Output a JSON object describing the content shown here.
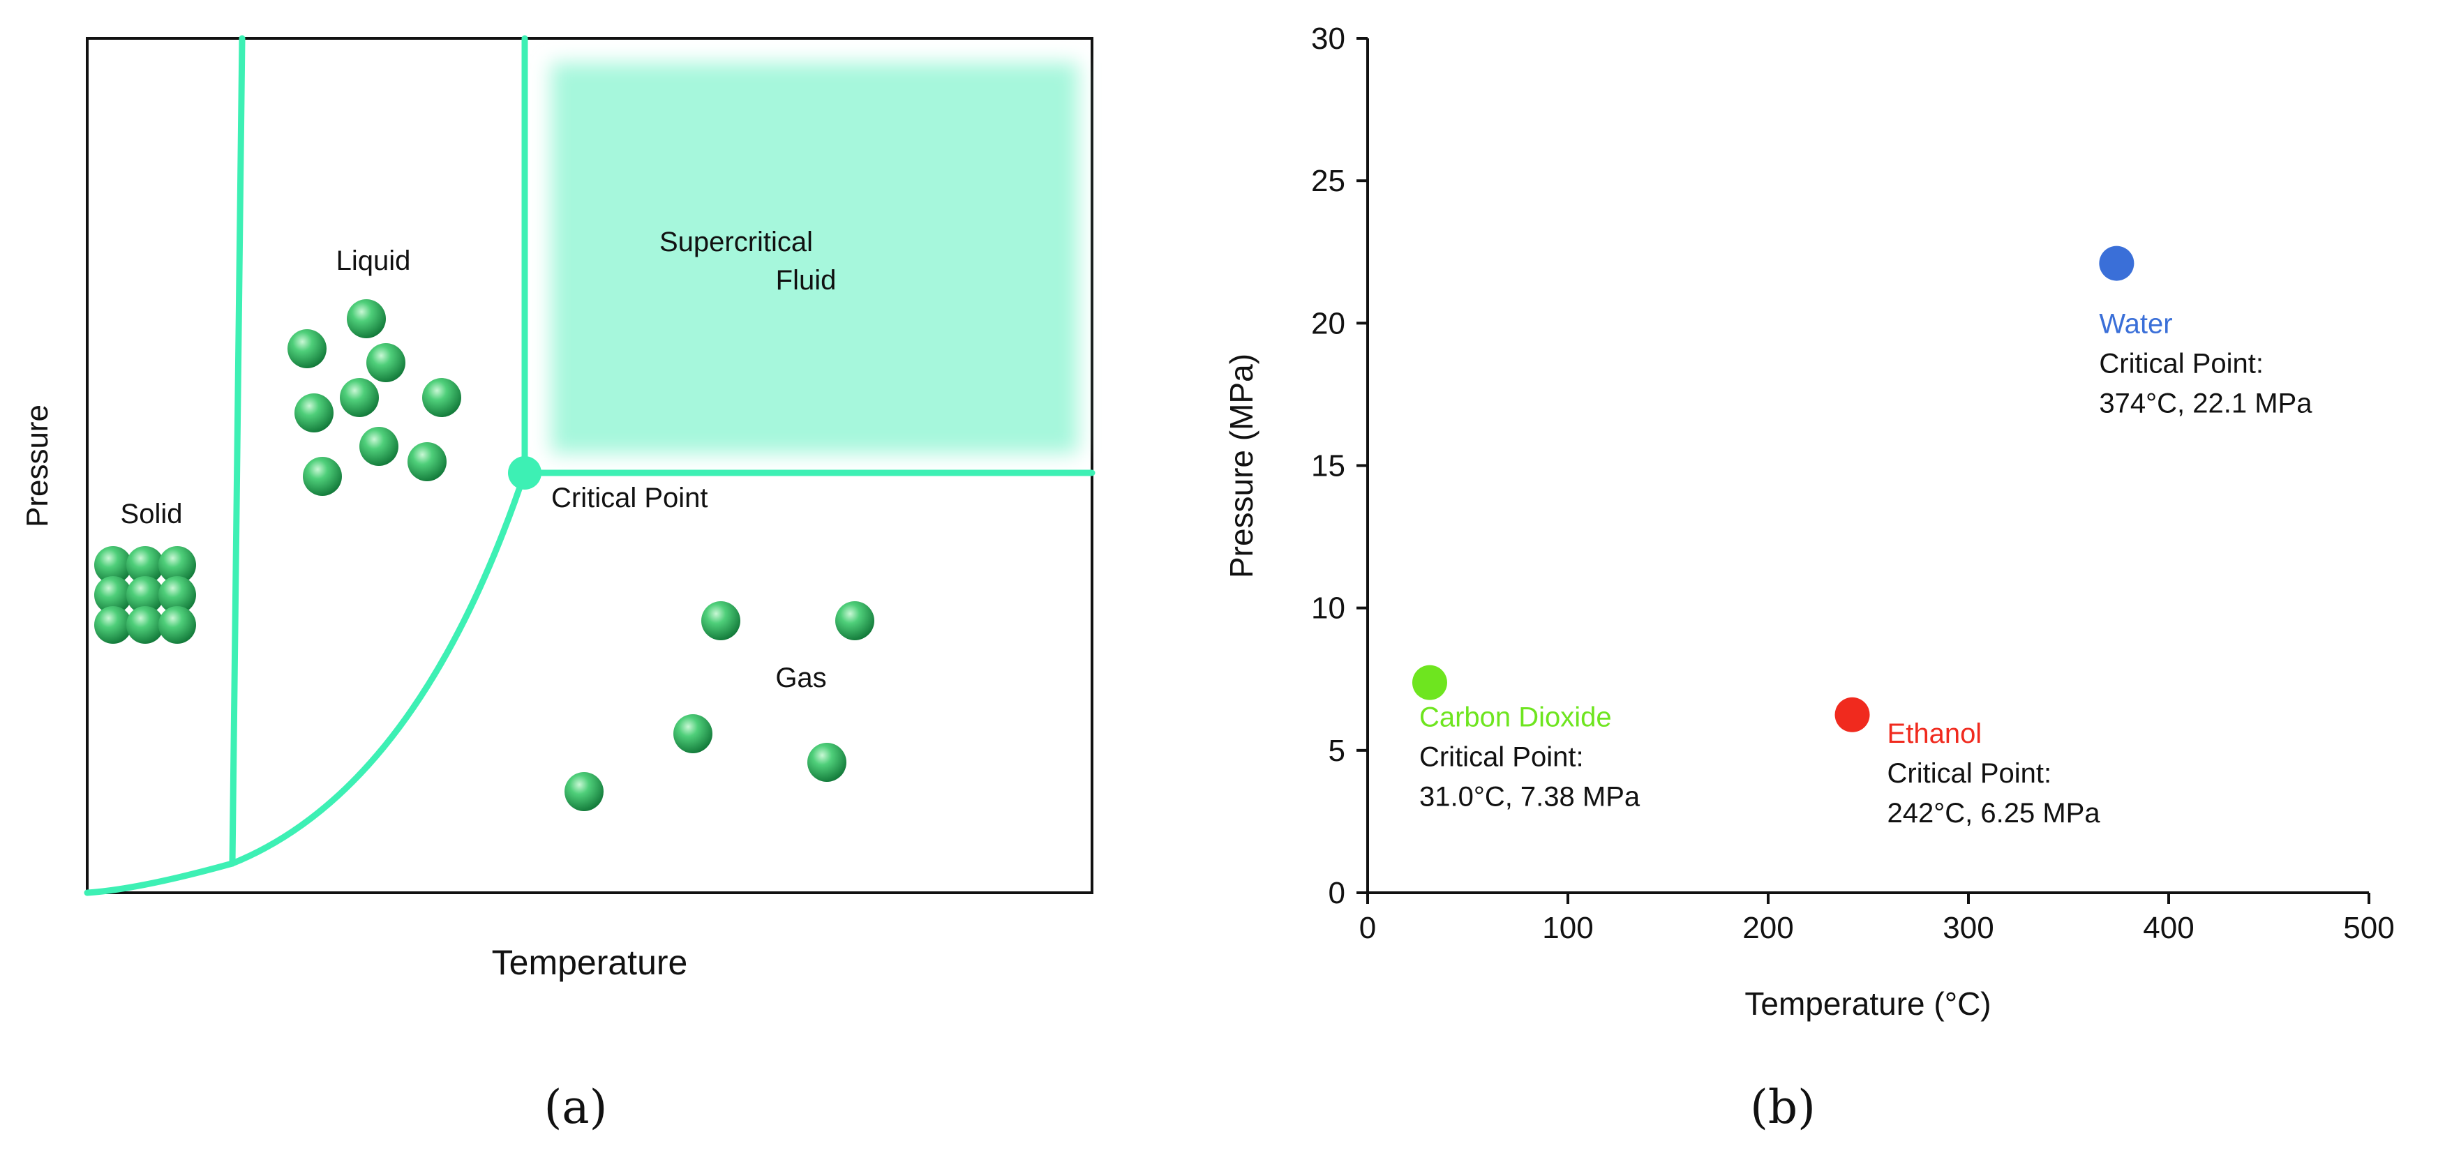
{
  "panel_a": {
    "caption": "(a)",
    "x_label": "Temperature",
    "y_label": "Pressure",
    "regions": {
      "solid": "Solid",
      "liquid": "Liquid",
      "gas": "Gas",
      "supercritical_line1": "Supercritical",
      "supercritical_line2": "Fluid"
    },
    "critical_point_label": "Critical Point",
    "colors": {
      "phase_line": "#3df0b4",
      "supercritical_fill": "#a6f7dc",
      "molecule": "#2fb55f"
    }
  },
  "panel_b": {
    "caption": "(b)"
  },
  "chart_data": {
    "type": "scatter",
    "title": "",
    "xlabel": "Temperature (°C)",
    "ylabel": "Pressure (MPa)",
    "xlim": [
      0,
      500
    ],
    "ylim": [
      0,
      30
    ],
    "xticks": [
      0,
      100,
      200,
      300,
      400,
      500
    ],
    "yticks": [
      0,
      5,
      10,
      15,
      20,
      25,
      30
    ],
    "grid": false,
    "points": [
      {
        "name": "Carbon Dioxide",
        "x": 31.0,
        "y": 7.38,
        "color": "#6ee51f",
        "line1": "Critical Point:",
        "line2": "31.0°C, 7.38 MPa"
      },
      {
        "name": "Ethanol",
        "x": 242,
        "y": 6.25,
        "color": "#f02a1e",
        "line1": "Critical Point:",
        "line2": "242°C, 6.25 MPa"
      },
      {
        "name": "Water",
        "x": 374,
        "y": 22.1,
        "color": "#3a6fd8",
        "line1": "Critical Point:",
        "line2": "374°C, 22.1 MPa"
      }
    ]
  }
}
